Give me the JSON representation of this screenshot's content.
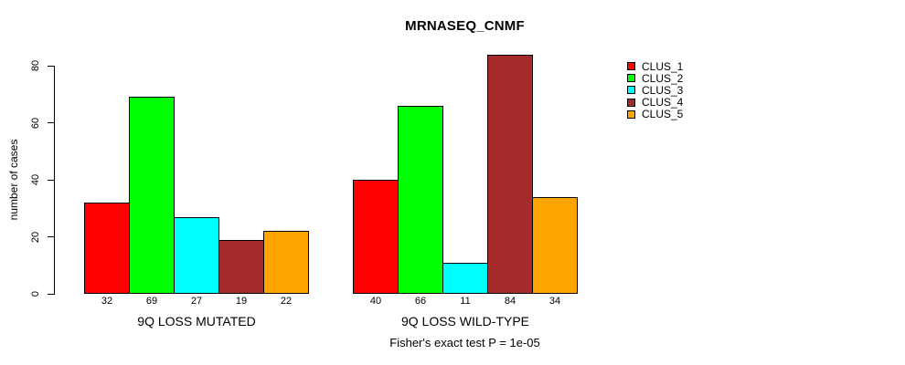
{
  "title": "MRNASEQ_CNMF",
  "y_axis": {
    "label": "number of cases",
    "ticks": [
      0,
      20,
      40,
      60,
      80
    ]
  },
  "caption": "Fisher's exact test P = 1e-05",
  "legend": {
    "items": [
      {
        "label": "CLUS_1",
        "color": "#ff0000"
      },
      {
        "label": "CLUS_2",
        "color": "#00ff00"
      },
      {
        "label": "CLUS_3",
        "color": "#00ffff"
      },
      {
        "label": "CLUS_4",
        "color": "#a52a2a"
      },
      {
        "label": "CLUS_5",
        "color": "#ffa500"
      }
    ]
  },
  "chart_data": {
    "type": "bar",
    "title": "MRNASEQ_CNMF",
    "xlabel": "",
    "ylabel": "number of cases",
    "ylim": [
      0,
      80
    ],
    "yticks": [
      0,
      20,
      40,
      60,
      80
    ],
    "categories": [
      "9Q LOSS MUTATED",
      "9Q LOSS WILD-TYPE"
    ],
    "series": [
      {
        "name": "CLUS_1",
        "color": "#ff0000",
        "values": [
          32,
          40
        ]
      },
      {
        "name": "CLUS_2",
        "color": "#00ff00",
        "values": [
          69,
          66
        ]
      },
      {
        "name": "CLUS_3",
        "color": "#00ffff",
        "values": [
          27,
          11
        ]
      },
      {
        "name": "CLUS_4",
        "color": "#a52a2a",
        "values": [
          19,
          84
        ]
      },
      {
        "name": "CLUS_5",
        "color": "#ffa500",
        "values": [
          22,
          34
        ]
      }
    ],
    "bar_value_labels": [
      [
        32,
        69,
        27,
        19,
        22
      ],
      [
        40,
        66,
        11,
        84,
        34
      ]
    ],
    "legend_position": "right",
    "legend_entries": [
      "CLUS_1",
      "CLUS_2",
      "CLUS_3",
      "CLUS_4",
      "CLUS_5"
    ],
    "grid": false,
    "annotation": "Fisher's exact test P = 1e-05"
  }
}
